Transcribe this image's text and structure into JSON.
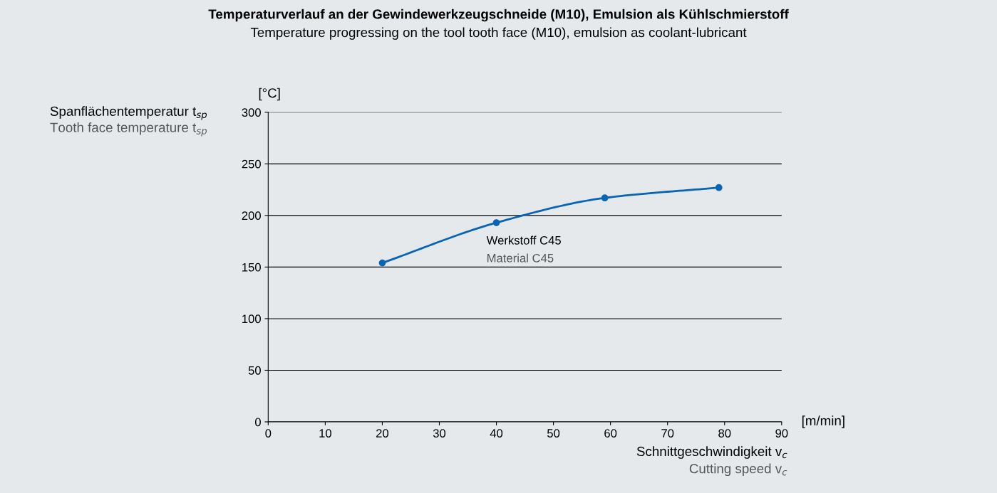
{
  "chart_data": {
    "type": "line",
    "title": "Temperaturverlauf an der Gewindewerkzeugschneide (M10), Emulsion als Kühlschmierstoff",
    "subtitle": "Temperature progressing on the tool tooth face (M10), emulsion as coolant-lubricant",
    "ylabel": "Spanflächentemperatur t$_{sp}$\nTooth face temperature t$_{sp}$",
    "xlabel": "Schnittgeschwindigkeit v$_{c}$\nCutting speed v$_{c}$",
    "series": [
      {
        "color": "#0a64b4",
        "x": [
          20,
          40,
          59,
          79
        ],
        "values": [
          154,
          193,
          217,
          227
        ]
      }
    ],
    "marker": "circle",
    "xlim": [
      0,
      90
    ],
    "xticks": [
      0,
      10,
      20,
      30,
      40,
      50,
      60,
      70,
      80,
      90
    ],
    "ylim": [
      0,
      300
    ],
    "yticks": [
      0,
      50,
      100,
      150,
      200,
      250,
      300
    ],
    "grid": "y",
    "annotations": [
      {
        "text": "Werkstoff C45\nMaterial C45",
        "x": 40,
        "y": 193
      },
      "[°C]",
      "[m/min]"
    ]
  }
}
